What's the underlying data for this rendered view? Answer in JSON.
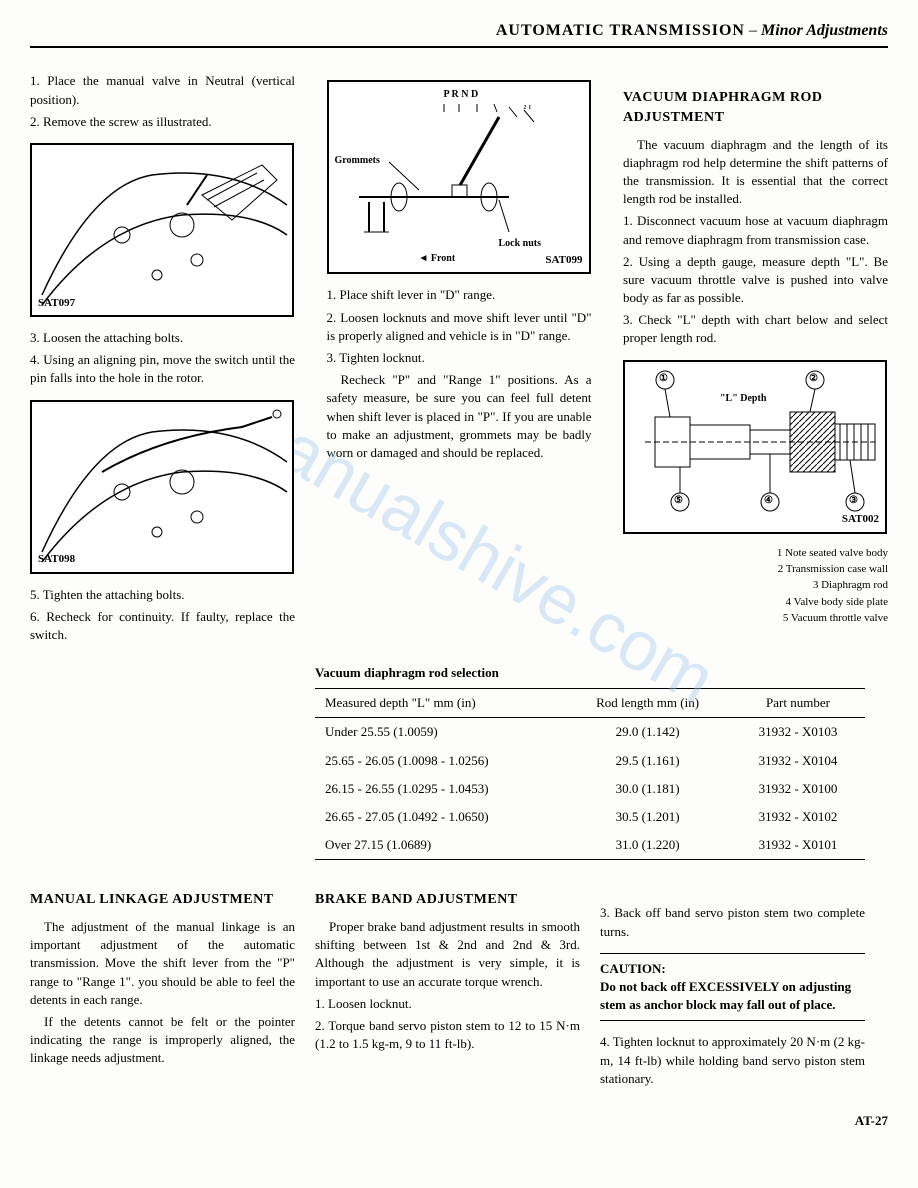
{
  "header": {
    "main": "AUTOMATIC TRANSMISSION",
    "sub": "Minor Adjustments"
  },
  "col1": {
    "p1": "1.  Place the manual valve in Neutral (vertical position).",
    "p2": "2.  Remove the screw as illustrated.",
    "fig1_label": "SAT097",
    "p3": "3.  Loosen the attaching bolts.",
    "p4": "4.  Using an aligning pin, move the switch until the pin falls into the hole in the rotor.",
    "fig2_label": "SAT098",
    "p5": "5.  Tighten the attaching bolts.",
    "p6": "6.  Recheck for continuity. If faulty, replace the switch.",
    "heading1": "MANUAL LINKAGE ADJUSTMENT",
    "p7": "The adjustment of the manual linkage is an important adjustment of the automatic transmission. Move the shift lever from the \"P\" range to \"Range 1\". you should be able to feel the detents in each range.",
    "p8": "If the detents cannot be felt or the pointer indicating the range is improperly aligned, the linkage needs adjustment."
  },
  "col2": {
    "fig3": {
      "prnd": "P  R  N  D",
      "marks": "₂ ₁",
      "grommets": "Grommets",
      "locknuts": "Lock nuts",
      "front": "◄ Front",
      "label": "SAT099"
    },
    "p1": "1.  Place shift lever in \"D\" range.",
    "p2": "2.  Loosen locknuts and move shift lever until \"D\" is properly aligned and vehicle is in \"D\" range.",
    "p3": "3.  Tighten locknut.",
    "p4": "Recheck \"P\" and \"Range 1\" positions. As a safety measure, be sure you can feel full detent when shift lever is placed in \"P\". If you are unable to make an adjustment, grommets may be badly worn or damaged and should be replaced.",
    "table_title": "Vacuum diaphragm rod selection",
    "heading2": "BRAKE BAND ADJUSTMENT",
    "p5": "Proper brake band adjustment results in smooth shifting between 1st & 2nd and 2nd & 3rd. Although the adjustment is very simple, it is important to use an accurate torque wrench.",
    "p6": "1.  Loosen locknut.",
    "p7": "2.  Torque band servo piston stem to 12 to 15 N·m (1.2 to 1.5 kg-m, 9 to 11 ft-lb)."
  },
  "col3": {
    "heading1": "VACUUM DIAPHRAGM ROD ADJUSTMENT",
    "p1": "The vacuum diaphragm and the length of its diaphragm rod help determine the shift patterns of the transmission. It is essential that the correct length rod be installed.",
    "p2": "1.  Disconnect vacuum hose at vacuum diaphragm and remove diaphragm from transmission case.",
    "p3": "2.  Using a depth gauge, measure depth \"L\". Be sure vacuum throttle valve is pushed into valve body as far as possible.",
    "p4": "3.  Check \"L\" depth with chart below and select proper length rod.",
    "fig4": {
      "ldepth": "\"L\" Depth",
      "label": "SAT002",
      "nums": [
        "①",
        "②",
        "③",
        "④",
        "⑤"
      ]
    },
    "legend": [
      "1   Note seated valve body",
      "2   Transmission case wall",
      "3   Diaphragm rod",
      "4   Valve body side plate",
      "5   Vacuum throttle valve"
    ],
    "p5": "3.  Back off band servo piston stem two complete turns.",
    "caution_title": "CAUTION:",
    "caution_body": "Do not back off EXCESSIVELY on adjusting stem as anchor block may fall out of place.",
    "p6": "4.  Tighten locknut to approximately 20 N·m (2 kg-m, 14 ft-lb) while holding band servo piston stem stationary."
  },
  "table": {
    "headers": [
      "Measured depth \"L\"  mm (in)",
      "Rod length mm (in)",
      "Part number"
    ],
    "rows": [
      [
        "Under 25.55   (1.0059)",
        "29.0  (1.142)",
        "31932 - X0103"
      ],
      [
        "25.65 - 26.05  (1.0098 - 1.0256)",
        "29.5  (1.161)",
        "31932 - X0104"
      ],
      [
        "26.15 - 26.55  (1.0295 - 1.0453)",
        "30.0  (1.181)",
        "31932 - X0100"
      ],
      [
        "26.65 - 27.05  (1.0492 - 1.0650)",
        "30.5  (1.201)",
        "31932 - X0102"
      ],
      [
        "Over 27.15    (1.0689)",
        "31.0  (1.220)",
        "31932 - X0101"
      ]
    ]
  },
  "page_num": "AT-27",
  "watermark": "manualshive.com"
}
